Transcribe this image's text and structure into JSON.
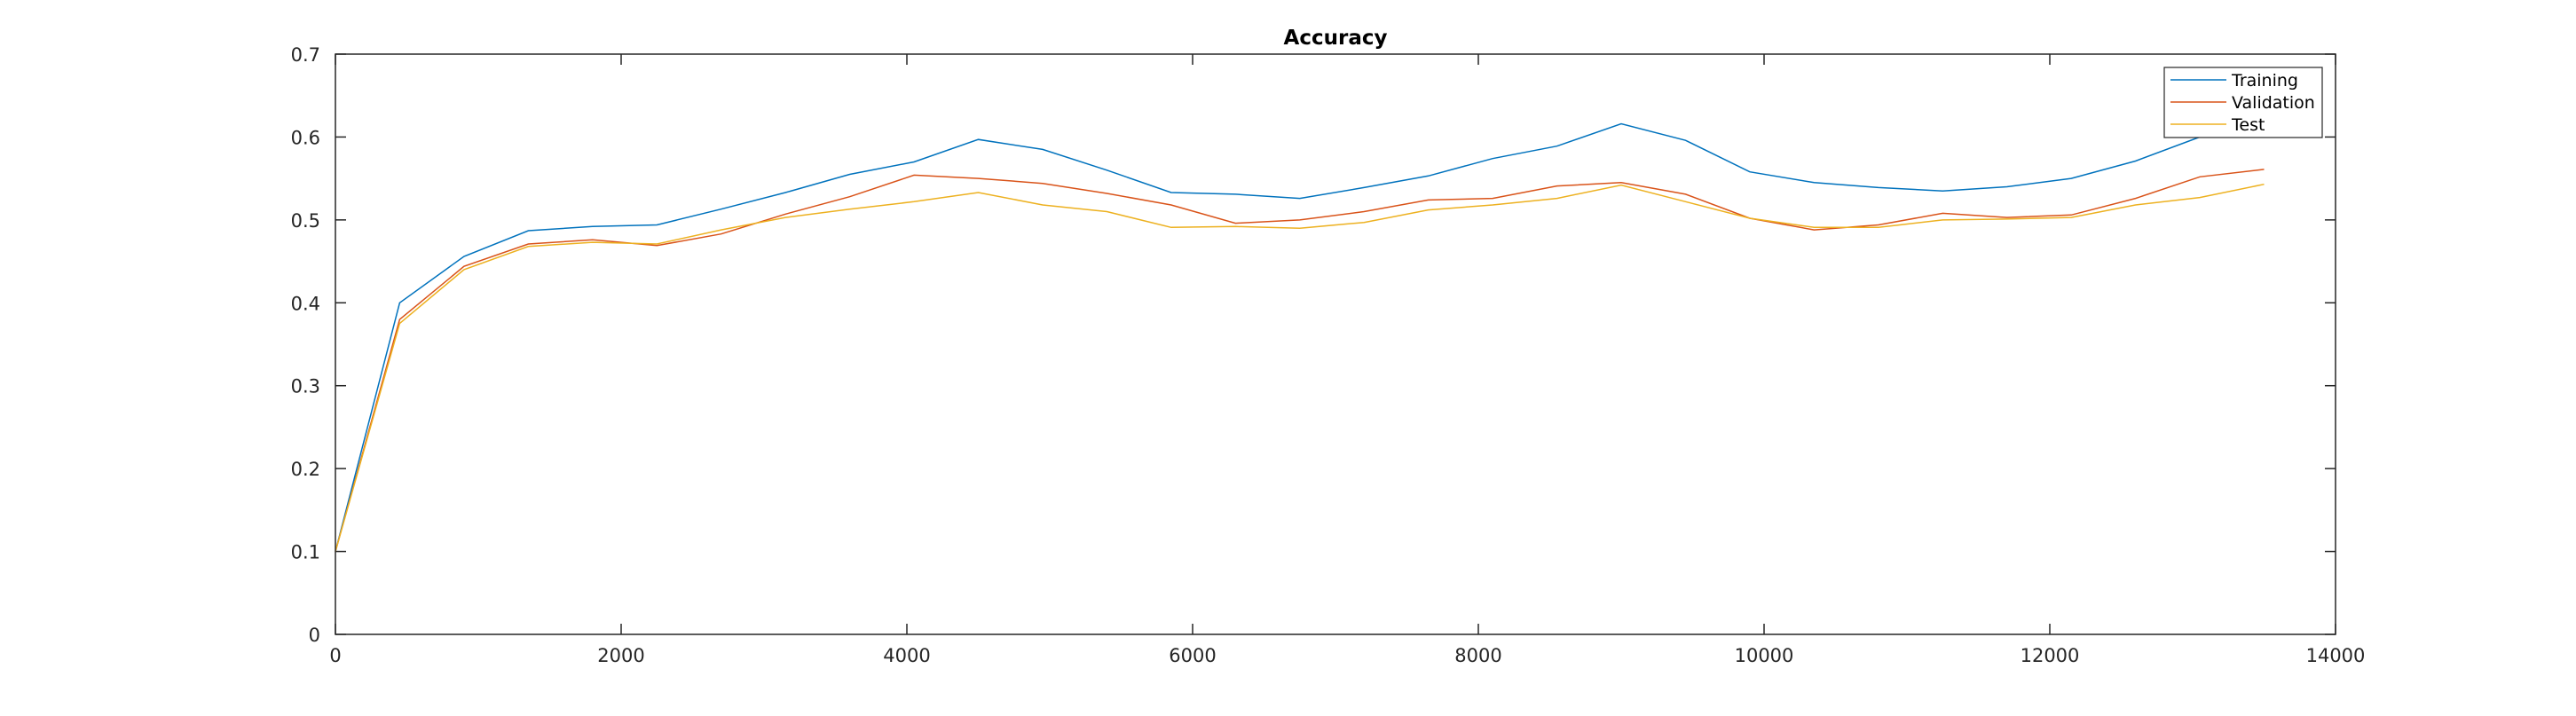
{
  "chart_data": {
    "type": "line",
    "title": "Accuracy",
    "xlabel": "",
    "ylabel": "",
    "xlim": [
      0,
      14000
    ],
    "ylim": [
      0,
      0.7
    ],
    "xticks": [
      0,
      2000,
      4000,
      6000,
      8000,
      10000,
      12000,
      14000
    ],
    "yticks": [
      0,
      0.1,
      0.2,
      0.3,
      0.4,
      0.5,
      0.6,
      0.7
    ],
    "grid": false,
    "legend_position": "top-right",
    "x": [
      0,
      450,
      900,
      1350,
      1800,
      2250,
      2700,
      3150,
      3600,
      4050,
      4500,
      4950,
      5400,
      5850,
      6300,
      6750,
      7200,
      7650,
      8100,
      8550,
      9000,
      9450,
      9900,
      10350,
      10800,
      11250,
      11700,
      12150,
      12600,
      13050,
      13500
    ],
    "series": [
      {
        "name": "Training",
        "color": "#0072bd",
        "values": [
          0.1,
          0.4,
          0.456,
          0.487,
          0.492,
          0.494,
          0.513,
          0.533,
          0.555,
          0.57,
          0.597,
          0.585,
          0.56,
          0.533,
          0.531,
          0.526,
          0.539,
          0.553,
          0.574,
          0.589,
          0.616,
          0.596,
          0.558,
          0.545,
          0.539,
          0.535,
          0.54,
          0.55,
          0.571,
          0.6,
          0.615
        ]
      },
      {
        "name": "Validation",
        "color": "#d95319",
        "values": [
          0.1,
          0.38,
          0.444,
          0.471,
          0.476,
          0.469,
          0.483,
          0.507,
          0.528,
          0.554,
          0.55,
          0.544,
          0.532,
          0.518,
          0.496,
          0.5,
          0.51,
          0.524,
          0.526,
          0.541,
          0.545,
          0.531,
          0.502,
          0.488,
          0.494,
          0.508,
          0.503,
          0.506,
          0.526,
          0.552,
          0.561
        ]
      },
      {
        "name": "Test",
        "color": "#edb120",
        "values": [
          0.1,
          0.375,
          0.44,
          0.468,
          0.473,
          0.471,
          0.488,
          0.503,
          0.513,
          0.522,
          0.533,
          0.518,
          0.51,
          0.491,
          0.492,
          0.49,
          0.497,
          0.512,
          0.518,
          0.526,
          0.542,
          0.522,
          0.502,
          0.491,
          0.491,
          0.5,
          0.501,
          0.503,
          0.518,
          0.527,
          0.543
        ]
      }
    ]
  }
}
